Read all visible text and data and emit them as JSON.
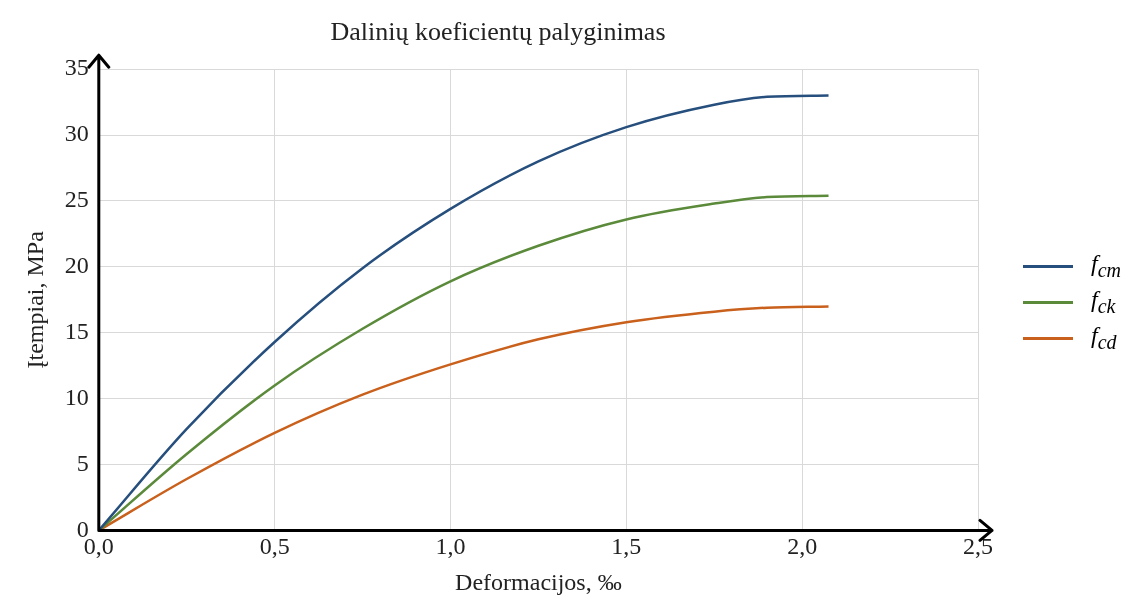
{
  "chart_data": {
    "type": "line",
    "title": "Dalinių koeficientų palyginimas",
    "xlabel": "Deformacijos, ‰",
    "ylabel": "Įtempiai, MPa",
    "x": [
      0,
      0.25,
      0.5,
      0.75,
      1.0,
      1.25,
      1.5,
      1.75,
      1.9,
      2.075
    ],
    "series": [
      {
        "name": "f$_{cm}$",
        "color": "#264f7d",
        "values": [
          0,
          7.7,
          14.3,
          19.9,
          24.4,
          28.0,
          30.6,
          32.3,
          32.9,
          33.0
        ]
      },
      {
        "name": "f$_{ck}$",
        "color": "#5a8a3a",
        "values": [
          0,
          5.8,
          11.0,
          15.3,
          18.9,
          21.6,
          23.6,
          24.8,
          25.3,
          25.4
        ]
      },
      {
        "name": "f$_{cd}$",
        "color": "#c9601c",
        "values": [
          0,
          3.9,
          7.4,
          10.3,
          12.6,
          14.5,
          15.8,
          16.6,
          16.9,
          17.0
        ]
      }
    ],
    "xlim": [
      0,
      2.5
    ],
    "xticks": [
      {
        "value": 0,
        "label": "0,0"
      },
      {
        "value": 0.5,
        "label": "0,5"
      },
      {
        "value": 1,
        "label": "1,0"
      },
      {
        "value": 1.5,
        "label": "1,5"
      },
      {
        "value": 2,
        "label": "2,0"
      },
      {
        "value": 2.5,
        "label": "2,5"
      }
    ],
    "ylim": [
      0,
      35
    ],
    "yticks": [
      0,
      5,
      10,
      15,
      20,
      25,
      30,
      35
    ],
    "grid": true,
    "legend": "right",
    "marker": "none",
    "line_style": "solid"
  }
}
